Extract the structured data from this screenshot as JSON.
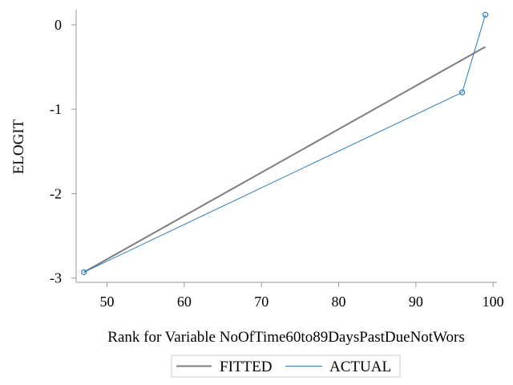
{
  "chart_data": {
    "type": "line",
    "title": "",
    "xlabel": "Rank for Variable NoOfTime60to89DaysPastDueNotWors",
    "ylabel": "ELOGIT",
    "xlim": [
      46,
      100.5
    ],
    "ylim": [
      -3.05,
      0.18
    ],
    "xticks": [
      50,
      60,
      70,
      80,
      90,
      100
    ],
    "yticks": [
      0,
      -1,
      -2,
      -3
    ],
    "grid": false,
    "legend_position": "bottom",
    "series": [
      {
        "name": "FITTED",
        "color": "#7f7f7f",
        "marker": "none",
        "x": [
          47,
          99
        ],
        "y": [
          -2.93,
          -0.26
        ]
      },
      {
        "name": "ACTUAL",
        "color": "#2b7bb9",
        "marker": "circle",
        "x": [
          47,
          96,
          99
        ],
        "y": [
          -2.93,
          -0.8,
          0.12
        ]
      }
    ]
  }
}
